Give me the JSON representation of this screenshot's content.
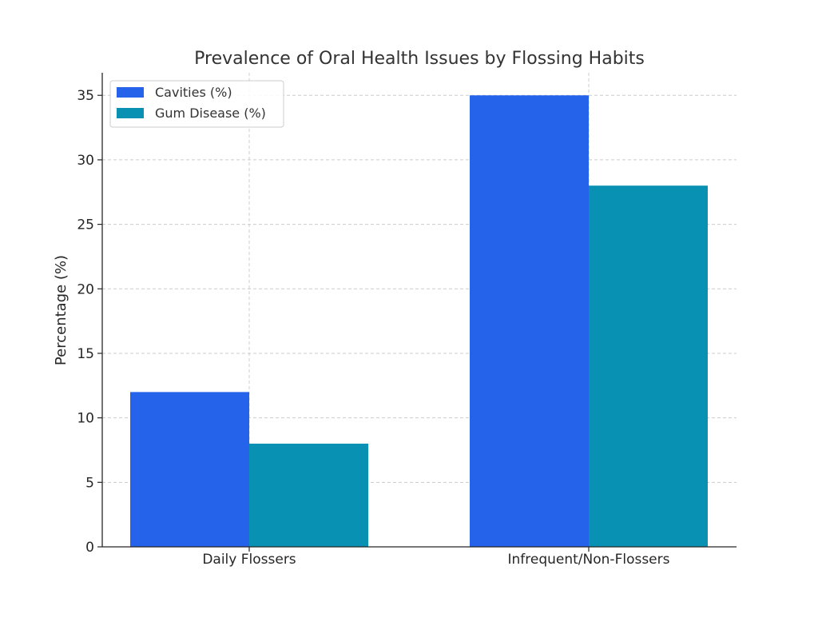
{
  "chart_data": {
    "type": "bar",
    "title": "Prevalence of Oral Health Issues by Flossing Habits",
    "xlabel": "",
    "ylabel": "Percentage (%)",
    "categories": [
      "Daily Flossers",
      "Infrequent/Non-Flossers"
    ],
    "series": [
      {
        "name": "Cavities (%)",
        "values": [
          12,
          35
        ],
        "color": "#2563eb"
      },
      {
        "name": "Gum Disease (%)",
        "values": [
          8,
          28
        ],
        "color": "#0891b2"
      }
    ],
    "ylim": [
      0,
      36.75
    ],
    "yticks": [
      0,
      5,
      10,
      15,
      20,
      25,
      30,
      35
    ],
    "grid": true,
    "legend_position": "upper-left"
  }
}
